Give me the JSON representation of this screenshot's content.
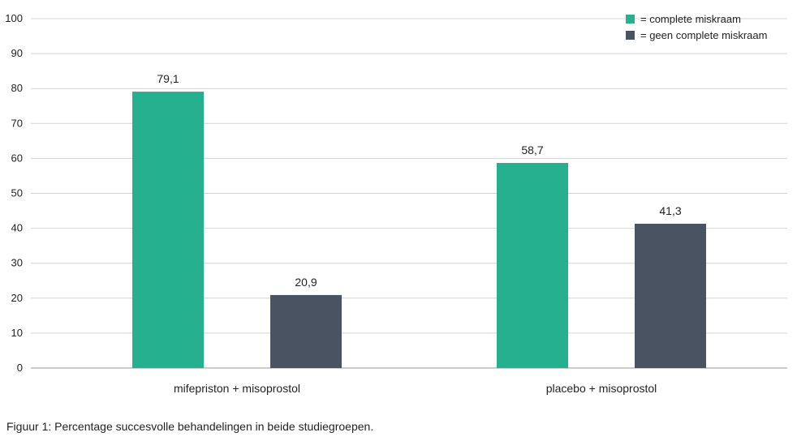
{
  "chart_data": {
    "type": "bar",
    "categories": [
      "mifepriston + misoprostol",
      "placebo + misoprostol"
    ],
    "series": [
      {
        "name": "= complete miskraam",
        "values": [
          79.1,
          58.7
        ],
        "color": "#25b08f"
      },
      {
        "name": "= geen complete miskraam",
        "values": [
          20.9,
          41.3
        ],
        "color": "#4a5361"
      }
    ],
    "data_labels": [
      [
        "79,1",
        "58,7"
      ],
      [
        "20,9",
        "41,3"
      ]
    ],
    "ylim": [
      0,
      100
    ],
    "yticks": [
      "0",
      "10",
      "20",
      "30",
      "40",
      "50",
      "60",
      "70",
      "80",
      "90",
      "100"
    ],
    "grid": true,
    "legend_position": "top-right",
    "xlabel": "",
    "ylabel": ""
  },
  "caption": "Figuur 1: Percentage succesvolle behandelingen in beide studiegroepen."
}
